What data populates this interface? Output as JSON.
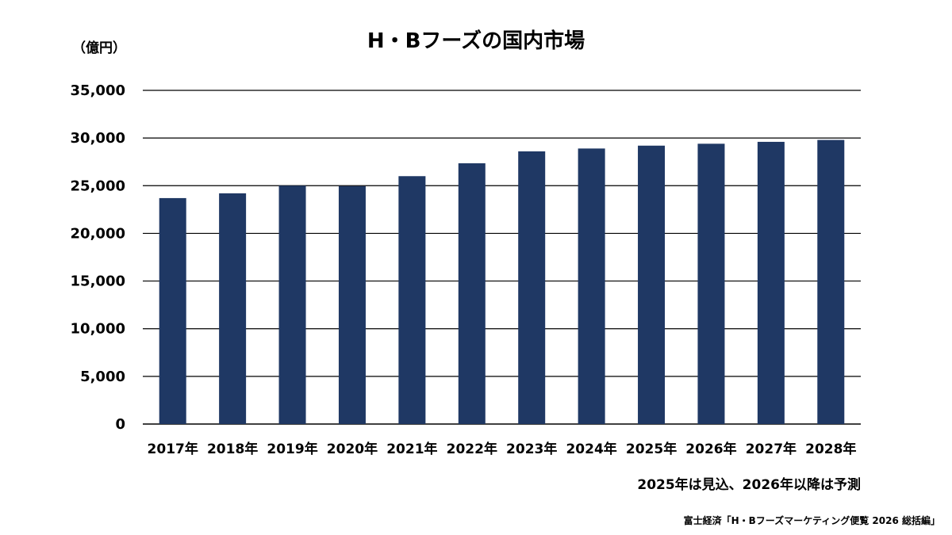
{
  "chart_data": {
    "type": "bar",
    "title": "H・Bフーズの国内市場",
    "unit_label": "（億円）",
    "categories": [
      "2017年",
      "2018年",
      "2019年",
      "2020年",
      "2021年",
      "2022年",
      "2023年",
      "2024年",
      "2025年",
      "2026年",
      "2027年",
      "2028年"
    ],
    "series": [
      {
        "values": [
          23700,
          24200,
          25000,
          24950,
          26000,
          27350,
          28600,
          28900,
          29200,
          29400,
          29600,
          29800
        ]
      }
    ],
    "ylim": [
      0,
      35000
    ],
    "yticks": [
      "0",
      "5,000",
      "10,000",
      "15,000",
      "20,000",
      "25,000",
      "30,000",
      "35,000"
    ],
    "grid": "horizontal",
    "legend": "none",
    "bar_color": "#1f3864",
    "note": "2025年は見込、2026年以降は予測",
    "source": "富士経済「H・Bフーズマーケティング便覧 2026 総括編」"
  }
}
